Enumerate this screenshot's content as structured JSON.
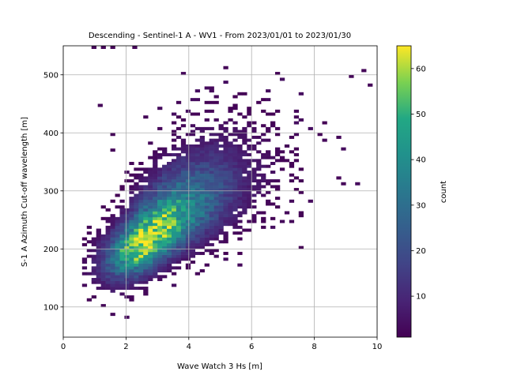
{
  "chart_data": {
    "type": "heatmap",
    "title": "Descending - Sentinel-1 A - WV1 - From 2023/01/01 to 2023/01/30",
    "xlabel": "Wave Watch 3 Hs [m]",
    "ylabel": "S-1 A Azimuth Cut-off wavelength [m]",
    "xlim": [
      0,
      10
    ],
    "ylim": [
      48,
      550
    ],
    "x_ticks": [
      "0",
      "2",
      "4",
      "6",
      "8",
      "10"
    ],
    "x_tick_values": [
      0,
      2,
      4,
      6,
      8,
      10
    ],
    "y_ticks": [
      "100",
      "200",
      "300",
      "400",
      "500"
    ],
    "y_tick_values": [
      100,
      200,
      300,
      400,
      500
    ],
    "grid": true,
    "colormap": "viridis",
    "colorbar": {
      "label": "count",
      "range": [
        1,
        65
      ],
      "ticks": [
        "10",
        "20",
        "30",
        "40",
        "50",
        "60"
      ],
      "tick_values": [
        10,
        20,
        30,
        40,
        50,
        60
      ]
    },
    "bin_size": {
      "x": 0.15,
      "y": 5
    },
    "density_model": {
      "center": [
        2.4,
        205
      ],
      "peak_count": 63,
      "note_sigma_along": 1.3,
      "sigma_across": 0.45
    }
  }
}
